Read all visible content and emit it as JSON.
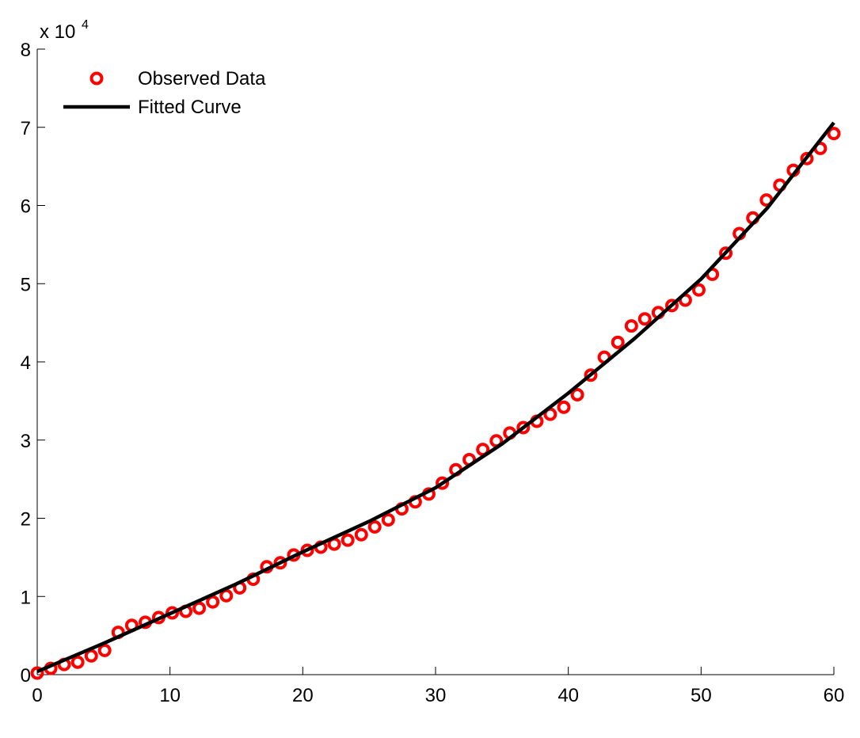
{
  "chart_data": {
    "type": "scatter",
    "y_multiplier": "x 10",
    "y_multiplier_exponent": "4",
    "xlim": [
      0,
      60
    ],
    "xticks": [
      0,
      10,
      20,
      30,
      40,
      50,
      60
    ],
    "ylim": [
      0,
      80000
    ],
    "yticks": [
      0,
      {
        "value": 10000,
        "label": "1"
      },
      {
        "value": 20000,
        "label": "2"
      },
      {
        "value": 30000,
        "label": "3"
      },
      {
        "value": 40000,
        "label": "4"
      },
      {
        "value": 50000,
        "label": "5"
      },
      {
        "value": 60000,
        "label": "6"
      },
      {
        "value": 70000,
        "label": "7"
      },
      {
        "value": 80000,
        "label": "8"
      }
    ],
    "grid": false,
    "legend": "upper left",
    "series": [
      {
        "name": "Observed Data",
        "type": "scatter",
        "color": "#ff0000",
        "x": [
          0,
          1.02,
          2.03,
          3.05,
          4.07,
          5.08,
          6.1,
          7.12,
          8.14,
          9.15,
          10.17,
          11.19,
          12.2,
          13.22,
          14.24,
          15.25,
          16.27,
          17.29,
          18.31,
          19.32,
          20.34,
          21.36,
          22.37,
          23.39,
          24.41,
          25.42,
          26.44,
          27.46,
          28.47,
          29.49,
          30.51,
          31.53,
          32.54,
          33.56,
          34.58,
          35.59,
          36.61,
          37.63,
          38.64,
          39.66,
          40.68,
          41.69,
          42.71,
          43.73,
          44.75,
          45.76,
          46.78,
          47.8,
          48.81,
          49.83,
          50.85,
          51.86,
          52.88,
          53.9,
          54.92,
          55.93,
          56.95,
          57.97,
          58.98,
          60
        ],
        "values": [
          200,
          800,
          1300,
          1600,
          2400,
          3100,
          5400,
          6300,
          6700,
          7300,
          7900,
          8100,
          8500,
          9300,
          10100,
          11100,
          12200,
          13800,
          14300,
          15300,
          15900,
          16300,
          16700,
          17200,
          17900,
          18900,
          19800,
          21200,
          22100,
          23100,
          24500,
          26200,
          27500,
          28800,
          29900,
          30900,
          31600,
          32400,
          33300,
          34200,
          35800,
          38300,
          40600,
          42500,
          44600,
          45500,
          46300,
          47200,
          47900,
          49200,
          51200,
          53900,
          56400,
          58400,
          60700,
          62600,
          64500,
          66000,
          67300,
          69200
        ]
      },
      {
        "name": "Fitted Curve",
        "type": "line",
        "color": "#000000",
        "x": [
          0,
          5,
          10,
          15,
          20,
          25,
          30,
          35,
          40,
          45,
          50,
          55,
          60
        ],
        "values": [
          400,
          4000,
          7800,
          11600,
          15700,
          19600,
          23900,
          29500,
          36000,
          43000,
          50600,
          59700,
          70600
        ]
      }
    ]
  }
}
